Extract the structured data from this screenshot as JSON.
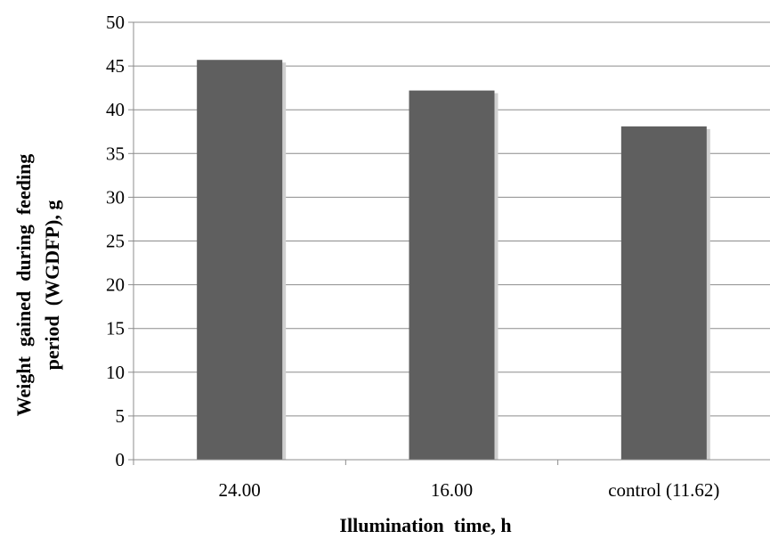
{
  "chart_data": {
    "type": "bar",
    "title": "",
    "categories": [
      "24.00",
      "16.00",
      "control (11.62)"
    ],
    "values": [
      45.7,
      42.2,
      38.1
    ],
    "xlabel": "Illumination  time, h",
    "ylabel_line1": "Weight  gained  during  feeding",
    "ylabel_line2": "period  (WGDFP), g",
    "ylim": [
      0,
      50
    ],
    "yticks": [
      "0",
      "5",
      "10",
      "15",
      "20",
      "25",
      "30",
      "35",
      "40",
      "45",
      "50"
    ],
    "grid": true,
    "legend": "none",
    "colors": {
      "bar": "#5f5f5f",
      "shadow": "#d0d0d0",
      "grid": "#8c8c8c",
      "axis": "#8c8c8c"
    }
  }
}
